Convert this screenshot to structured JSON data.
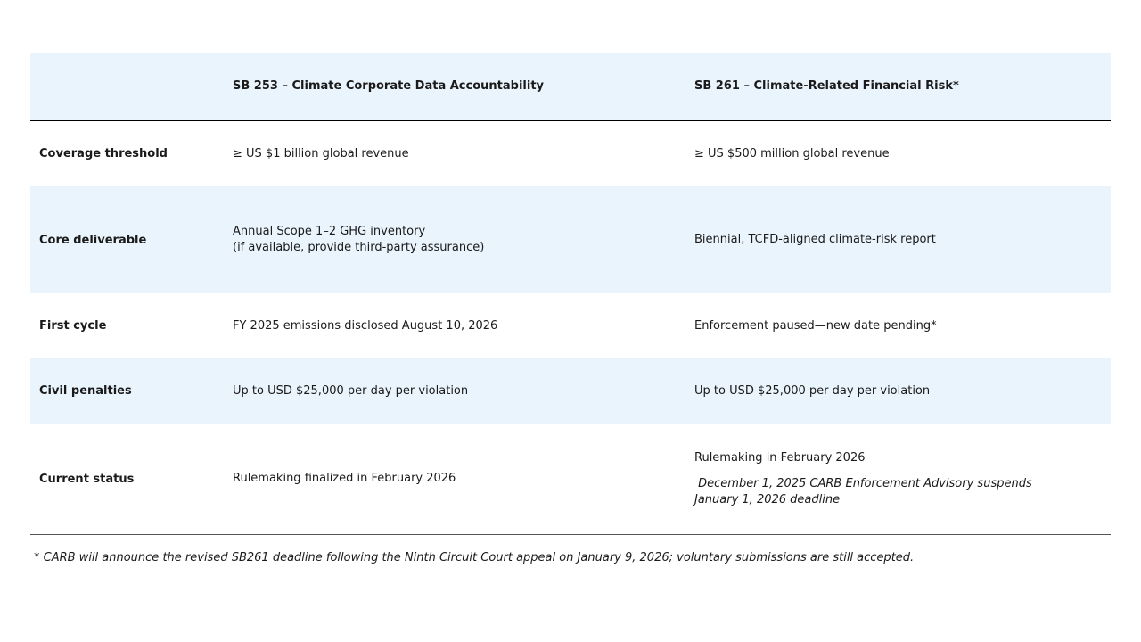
{
  "header": {
    "col1": "",
    "col2": "SB 253 – Climate Corporate Data Accountability",
    "col3": "SB 261 – Climate-Related Financial Risk*"
  },
  "rows": [
    {
      "label": "Coverage threshold",
      "sb253": "≥ US $1 billion global revenue",
      "sb261": "≥ US $500 million global revenue"
    },
    {
      "label": "Core deliverable",
      "sb253_line1": "Annual Scope 1–2 GHG inventory",
      "sb253_line2": "(if available, provide third-party assurance)",
      "sb261": "Biennial, TCFD-aligned climate-risk report"
    },
    {
      "label": "First cycle",
      "sb253": "FY 2025 emissions disclosed August 10, 2026",
      "sb261": "Enforcement paused—new date pending*"
    },
    {
      "label": "Civil penalties",
      "sb253": "Up to USD $25,000 per day per violation",
      "sb261": "Up to USD $25,000 per day per violation"
    },
    {
      "label": "Current status",
      "sb253": "Rulemaking finalized in February 2026",
      "sb261_line1": "Rulemaking in February 2026",
      "sb261_note_line1": " December 1, 2025 CARB Enforcement Advisory suspends",
      "sb261_note_line2": "January 1, 2026 deadline"
    }
  ],
  "footnote": "* CARB will announce the revised SB261 deadline following the Ninth Circuit Court appeal on January 9, 2026; voluntary submissions are still accepted.",
  "colors": {
    "row_band": "#eaf4fc",
    "header_rule": "#000000",
    "bottom_rule": "#555555"
  }
}
